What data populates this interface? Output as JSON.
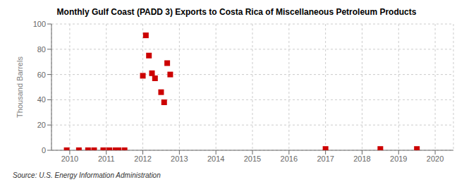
{
  "chart_data": {
    "type": "scatter",
    "title": "Monthly Gulf Coast (PADD 3) Exports to Costa Rica of Miscellaneous Petroleum Products",
    "ylabel": "Thousand Barrels",
    "annotation": "Source: U.S. Energy Information Administration",
    "x": [
      2009.917,
      2010.25,
      2010.5,
      2010.667,
      2010.917,
      2011.083,
      2011.25,
      2011.333,
      2011.5,
      2012.0,
      2012.083,
      2012.167,
      2012.25,
      2012.333,
      2012.5,
      2012.583,
      2012.667,
      2012.75,
      2017.0,
      2018.5,
      2019.5
    ],
    "values": [
      0,
      0,
      0,
      0,
      0,
      0,
      0,
      0,
      0,
      59,
      91,
      75,
      61,
      57,
      46,
      38,
      69,
      60,
      1,
      1,
      1
    ],
    "color": "#cc0000",
    "marker": "square",
    "xlim": [
      2009.5,
      2020.5
    ],
    "ylim": [
      0,
      100
    ],
    "xticks": [
      2010,
      2011,
      2012,
      2013,
      2014,
      2015,
      2016,
      2017,
      2018,
      2019,
      2020
    ],
    "yticks": [
      0,
      20,
      40,
      60,
      80,
      100
    ],
    "grid": true
  }
}
